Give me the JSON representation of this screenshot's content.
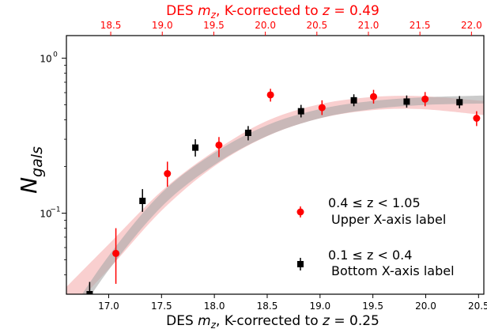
{
  "chart_data": {
    "type": "scatter",
    "ylabel_main": "N",
    "ylabel_sub": "gals",
    "xlabel_bottom": {
      "pre": "DES ",
      "var": "m",
      "sub": "z",
      "post": ", K-corrected to ",
      "zvar": "z",
      "post2": " = 0.25"
    },
    "xlabel_top": {
      "pre": "DES ",
      "var": "m",
      "sub": "z",
      "post": ", K-corrected to ",
      "zvar": "z",
      "post2": " = 0.49"
    },
    "bottom_axis": {
      "range": [
        16.6,
        20.55
      ],
      "ticks": [
        "17.0",
        "17.5",
        "18.0",
        "18.5",
        "19.0",
        "19.5",
        "20.0",
        "20.5"
      ]
    },
    "top_axis": {
      "range": [
        18.07,
        22.12
      ],
      "ticks": [
        "18.5",
        "19.0",
        "19.5",
        "20.0",
        "20.5",
        "21.0",
        "21.5",
        "22.0"
      ]
    },
    "y_axis": {
      "scale": "log",
      "range": [
        0.03,
        1.4
      ],
      "ticks": [
        {
          "value": 1.0,
          "label": "10",
          "exp": "0"
        },
        {
          "value": 0.1,
          "label": "10",
          "exp": "−1"
        }
      ]
    },
    "colors": {
      "upper": "#ff0000",
      "upper_band": "#f4a0a0",
      "lower": "#000000",
      "lower_band": "#a8a8a8",
      "top_axis": "#ff0000"
    },
    "series": [
      {
        "key": "upper",
        "axis": "top",
        "marker": "circle",
        "legend_range": "0.4 ≤ z < 1.05",
        "legend_label": "Upper X-axis label",
        "points": [
          {
            "x": 18.55,
            "y": 0.055,
            "lo": 0.035,
            "hi": 0.08
          },
          {
            "x": 19.05,
            "y": 0.18,
            "lo": 0.148,
            "hi": 0.215
          },
          {
            "x": 19.55,
            "y": 0.275,
            "lo": 0.23,
            "hi": 0.31
          },
          {
            "x": 20.05,
            "y": 0.58,
            "lo": 0.525,
            "hi": 0.635
          },
          {
            "x": 20.55,
            "y": 0.48,
            "lo": 0.43,
            "hi": 0.535
          },
          {
            "x": 21.05,
            "y": 0.565,
            "lo": 0.51,
            "hi": 0.625
          },
          {
            "x": 21.55,
            "y": 0.545,
            "lo": 0.49,
            "hi": 0.605
          },
          {
            "x": 22.05,
            "y": 0.41,
            "lo": 0.365,
            "hi": 0.455
          }
        ],
        "band": [
          {
            "x": 18.0,
            "lo": 0.02,
            "hi": 0.03
          },
          {
            "x": 18.5,
            "lo": 0.045,
            "hi": 0.065
          },
          {
            "x": 19.0,
            "lo": 0.105,
            "hi": 0.14
          },
          {
            "x": 19.5,
            "lo": 0.2,
            "hi": 0.25
          },
          {
            "x": 20.0,
            "lo": 0.31,
            "hi": 0.39
          },
          {
            "x": 20.5,
            "lo": 0.405,
            "hi": 0.5
          },
          {
            "x": 21.0,
            "lo": 0.46,
            "hi": 0.56
          },
          {
            "x": 21.5,
            "lo": 0.47,
            "hi": 0.57
          },
          {
            "x": 22.12,
            "lo": 0.43,
            "hi": 0.53
          }
        ]
      },
      {
        "key": "lower",
        "axis": "bottom",
        "marker": "square",
        "legend_range": "0.1 ≤ z < 0.4",
        "legend_label": "Bottom X-axis label",
        "points": [
          {
            "x": 16.82,
            "y": 0.03,
            "lo": 0.026,
            "hi": 0.036
          },
          {
            "x": 17.32,
            "y": 0.12,
            "lo": 0.102,
            "hi": 0.143
          },
          {
            "x": 17.82,
            "y": 0.265,
            "lo": 0.232,
            "hi": 0.3
          },
          {
            "x": 18.32,
            "y": 0.33,
            "lo": 0.295,
            "hi": 0.365
          },
          {
            "x": 18.82,
            "y": 0.455,
            "lo": 0.415,
            "hi": 0.5
          },
          {
            "x": 19.32,
            "y": 0.535,
            "lo": 0.49,
            "hi": 0.585
          },
          {
            "x": 19.82,
            "y": 0.525,
            "lo": 0.48,
            "hi": 0.575
          },
          {
            "x": 20.32,
            "y": 0.52,
            "lo": 0.475,
            "hi": 0.57
          }
        ],
        "band": [
          {
            "x": 16.6,
            "lo": 0.017,
            "hi": 0.021
          },
          {
            "x": 17.0,
            "lo": 0.043,
            "hi": 0.053
          },
          {
            "x": 17.5,
            "lo": 0.11,
            "hi": 0.135
          },
          {
            "x": 18.0,
            "lo": 0.205,
            "hi": 0.245
          },
          {
            "x": 18.5,
            "lo": 0.315,
            "hi": 0.37
          },
          {
            "x": 19.0,
            "lo": 0.41,
            "hi": 0.47
          },
          {
            "x": 19.5,
            "lo": 0.47,
            "hi": 0.53
          },
          {
            "x": 20.0,
            "lo": 0.5,
            "hi": 0.56
          },
          {
            "x": 20.55,
            "lo": 0.51,
            "hi": 0.575
          }
        ]
      }
    ],
    "legend": {
      "placement": "lower-right"
    }
  }
}
